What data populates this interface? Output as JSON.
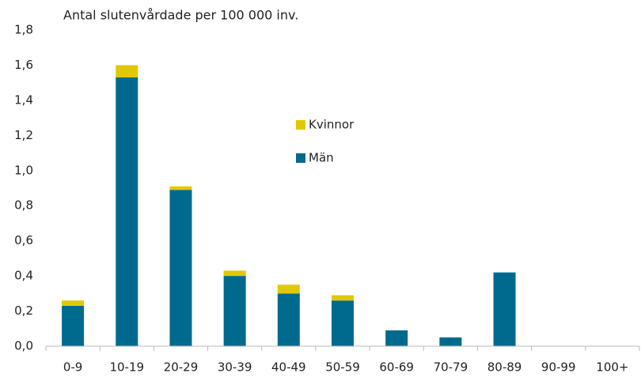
{
  "chart_data": {
    "type": "stacked_bar",
    "title": "Antal slutenvårdade per 100 000 inv.",
    "categories": [
      "0-9",
      "10-19",
      "20-29",
      "30-39",
      "40-49",
      "50-59",
      "60-69",
      "70-79",
      "80-89",
      "90-99",
      "100+"
    ],
    "series": [
      {
        "name": "Män",
        "color": "#006a8e",
        "values": [
          0.23,
          1.53,
          0.89,
          0.4,
          0.3,
          0.26,
          0.09,
          0.05,
          0.42,
          0,
          0
        ]
      },
      {
        "name": "Kvinnor",
        "color": "#e1c800",
        "values": [
          0.03,
          0.07,
          0.02,
          0.03,
          0.05,
          0.03,
          0,
          0,
          0,
          0,
          0
        ]
      }
    ],
    "ylim": [
      0,
      1.8
    ],
    "yticks": [
      {
        "value": 0,
        "label": "0,0"
      },
      {
        "value": 0.2,
        "label": "0,2"
      },
      {
        "value": 0.4,
        "label": "0,4"
      },
      {
        "value": 0.6,
        "label": "0,6"
      },
      {
        "value": 0.8,
        "label": "0,8"
      },
      {
        "value": 1.0,
        "label": "1,0"
      },
      {
        "value": 1.2,
        "label": "1,2"
      },
      {
        "value": 1.4,
        "label": "1,4"
      },
      {
        "value": 1.6,
        "label": "1,6"
      },
      {
        "value": 1.8,
        "label": "1,8"
      }
    ],
    "grid": false,
    "legend": "center"
  }
}
